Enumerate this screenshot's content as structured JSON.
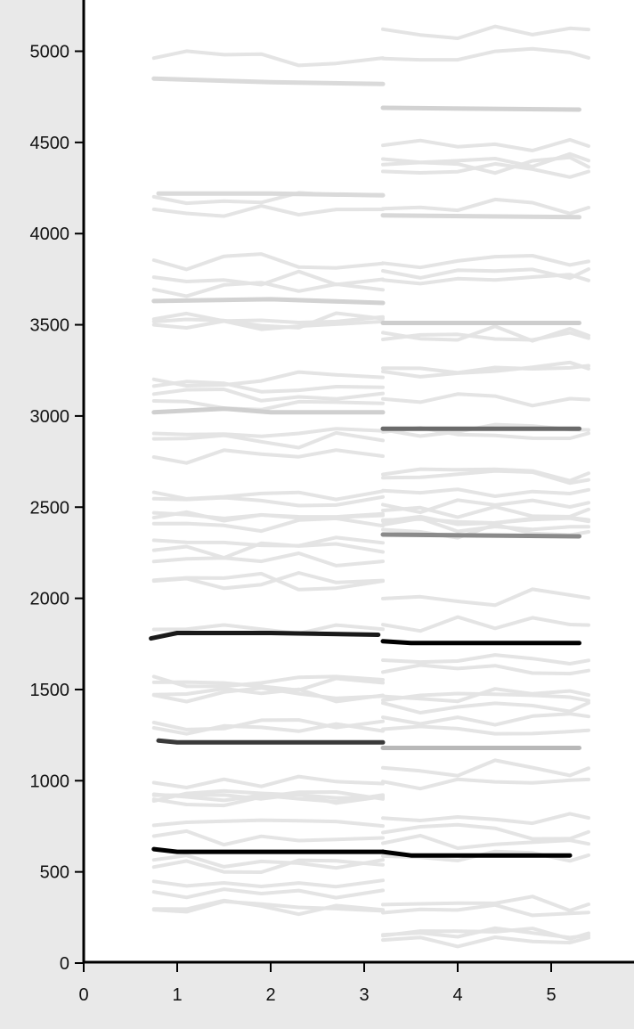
{
  "chart_data": {
    "type": "line",
    "title": "",
    "xlabel": "",
    "ylabel": "",
    "xlim": [
      0,
      5.9
    ],
    "ylim": [
      0,
      5250
    ],
    "x_ticks": [
      0,
      1,
      2,
      3,
      4,
      5
    ],
    "y_ticks": [
      0,
      500,
      1000,
      1500,
      2000,
      2500,
      3000,
      3500,
      4000,
      4500,
      5000
    ],
    "grid": false,
    "legend": "none",
    "colors": {
      "background": "#e9e9e9",
      "plot_area": "#ffffff",
      "axis": "#000000",
      "faint_trace": "#e4e4e4"
    },
    "series": [
      {
        "segment": "left",
        "color": "#000000",
        "x": [
          0.75,
          1.0,
          2.0,
          3.2
        ],
        "y": [
          625,
          610,
          610,
          610
        ]
      },
      {
        "segment": "right",
        "color": "#000000",
        "x": [
          3.2,
          3.5,
          5.2
        ],
        "y": [
          610,
          590,
          590
        ]
      },
      {
        "segment": "left",
        "color": "#3a3a3a",
        "x": [
          0.8,
          1.0,
          2.0,
          3.2
        ],
        "y": [
          1220,
          1210,
          1210,
          1210
        ]
      },
      {
        "segment": "right",
        "color": "#b8b8b8",
        "x": [
          3.2,
          5.3
        ],
        "y": [
          1180,
          1180
        ]
      },
      {
        "segment": "left",
        "color": "#1a1a1a",
        "x": [
          0.72,
          1.0,
          2.0,
          3.15
        ],
        "y": [
          1780,
          1810,
          1810,
          1800
        ]
      },
      {
        "segment": "right",
        "color": "#000000",
        "x": [
          3.2,
          3.5,
          5.3
        ],
        "y": [
          1765,
          1755,
          1755
        ]
      },
      {
        "segment": "right",
        "color": "#8a8a8a",
        "x": [
          3.2,
          5.3
        ],
        "y": [
          2350,
          2340
        ]
      },
      {
        "segment": "left",
        "color": "#cfcfcf",
        "x": [
          0.75,
          1.5,
          2.0,
          3.2
        ],
        "y": [
          3020,
          3040,
          3020,
          3020
        ]
      },
      {
        "segment": "right",
        "color": "#6a6a6a",
        "x": [
          3.2,
          5.3
        ],
        "y": [
          2930,
          2930
        ]
      },
      {
        "segment": "left",
        "color": "#d2d2d2",
        "x": [
          0.75,
          2.0,
          3.2
        ],
        "y": [
          3630,
          3640,
          3620
        ]
      },
      {
        "segment": "right",
        "color": "#cdcdcd",
        "x": [
          3.2,
          5.3
        ],
        "y": [
          3510,
          3510
        ]
      },
      {
        "segment": "right",
        "color": "#d8d8d8",
        "x": [
          3.2,
          5.3
        ],
        "y": [
          4100,
          4090
        ]
      },
      {
        "segment": "left",
        "color": "#dadada",
        "x": [
          0.8,
          2.0,
          3.2
        ],
        "y": [
          4220,
          4220,
          4210
        ]
      },
      {
        "segment": "right",
        "color": "#d2d2d2",
        "x": [
          3.2,
          5.3
        ],
        "y": [
          4690,
          4680
        ]
      },
      {
        "segment": "left",
        "color": "#dadada",
        "x": [
          0.75,
          2.0,
          3.2
        ],
        "y": [
          4850,
          4830,
          4820
        ]
      }
    ]
  }
}
